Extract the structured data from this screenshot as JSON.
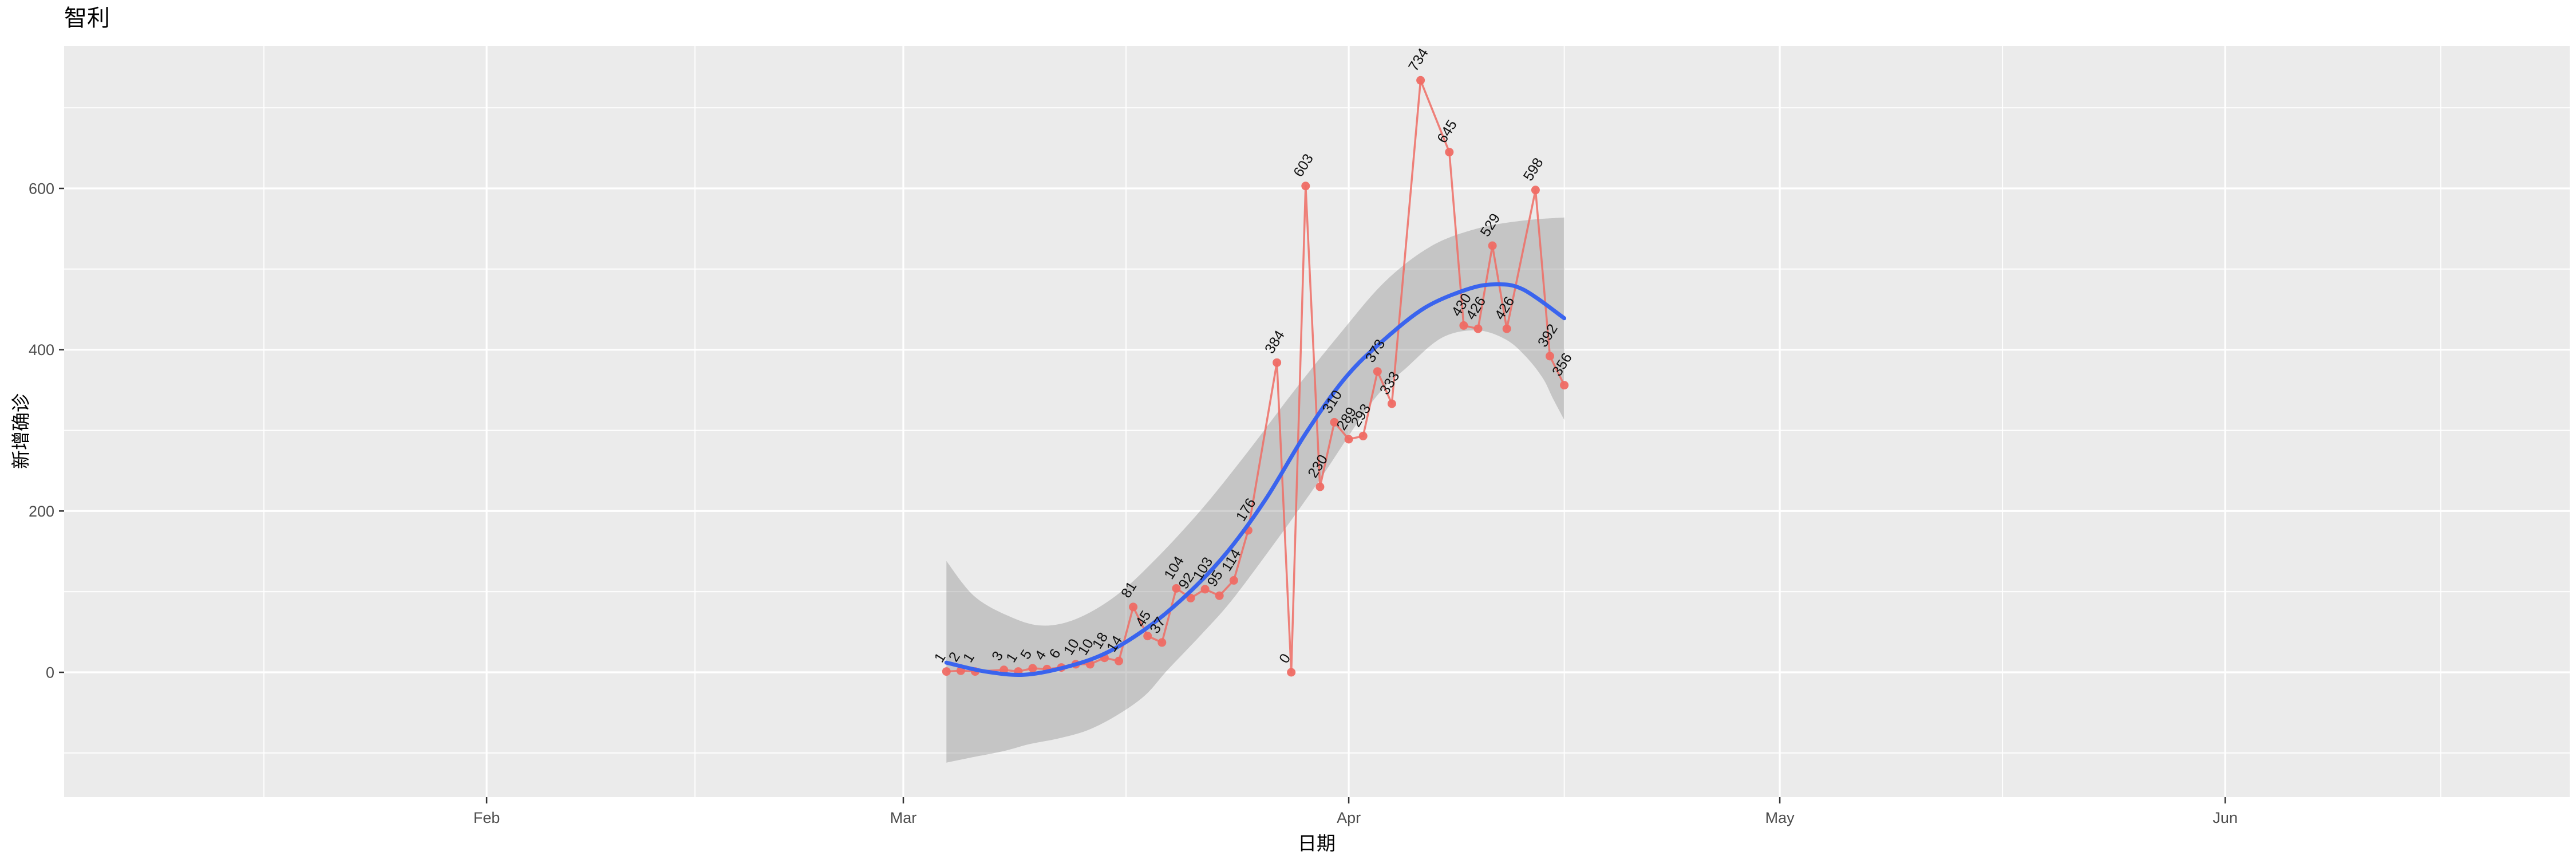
{
  "page": {
    "background": "#FFFFFF"
  },
  "title": "智利",
  "chart_data": {
    "type": "line",
    "title": "智利",
    "xlabel": "日期",
    "ylabel": "新增确诊",
    "legend": "none",
    "grid": true,
    "x_axis": {
      "day_offset_origin": "2020-03-01",
      "tick_labels": [
        "Feb",
        "Mar",
        "Apr",
        "May",
        "Jun"
      ],
      "major_day_offsets": [
        -29,
        0,
        31,
        61,
        92
      ],
      "minor_day_offsets": [
        -44.5,
        -14.5,
        15.5,
        46,
        76.5,
        107
      ]
    },
    "y_axis": {
      "tick_labels": [
        "0",
        "200",
        "400",
        "600"
      ],
      "major_values": [
        0,
        200,
        400,
        600
      ],
      "minor_values": [
        -100,
        100,
        300,
        500,
        700
      ],
      "range_shown": [
        -155,
        777
      ]
    },
    "series": [
      {
        "name": "新增确诊",
        "style": "line+points+labels",
        "points_format": [
          "date",
          "day_offset",
          "new_cases"
        ],
        "points": [
          [
            "2020-03-04",
            3,
            1
          ],
          [
            "2020-03-05",
            4,
            2
          ],
          [
            "2020-03-06",
            5,
            1
          ],
          [
            "2020-03-08",
            7,
            3
          ],
          [
            "2020-03-09",
            8,
            1
          ],
          [
            "2020-03-10",
            9,
            5
          ],
          [
            "2020-03-11",
            10,
            4
          ],
          [
            "2020-03-12",
            11,
            6
          ],
          [
            "2020-03-13",
            12,
            10
          ],
          [
            "2020-03-14",
            13,
            10
          ],
          [
            "2020-03-15",
            14,
            18
          ],
          [
            "2020-03-16",
            15,
            14
          ],
          [
            "2020-03-17",
            16,
            81
          ],
          [
            "2020-03-18",
            17,
            45
          ],
          [
            "2020-03-19",
            18,
            37
          ],
          [
            "2020-03-20",
            19,
            104
          ],
          [
            "2020-03-21",
            20,
            92
          ],
          [
            "2020-03-22",
            21,
            103
          ],
          [
            "2020-03-23",
            22,
            95
          ],
          [
            "2020-03-24",
            23,
            114
          ],
          [
            "2020-03-25",
            24,
            176
          ],
          [
            "2020-03-27",
            26,
            384
          ],
          [
            "2020-03-28",
            27,
            0
          ],
          [
            "2020-03-29",
            28,
            603
          ],
          [
            "2020-03-30",
            29,
            230
          ],
          [
            "2020-03-31",
            30,
            310
          ],
          [
            "2020-04-01",
            31,
            289
          ],
          [
            "2020-04-02",
            32,
            293
          ],
          [
            "2020-04-03",
            33,
            373
          ],
          [
            "2020-04-04",
            34,
            333
          ],
          [
            "2020-04-06",
            36,
            734
          ],
          [
            "2020-04-08",
            38,
            645
          ],
          [
            "2020-04-09",
            39,
            430
          ],
          [
            "2020-04-10",
            40,
            426
          ],
          [
            "2020-04-11",
            41,
            529
          ],
          [
            "2020-04-12",
            42,
            426
          ],
          [
            "2020-04-14",
            44,
            598
          ],
          [
            "2020-04-15",
            45,
            392
          ],
          [
            "2020-04-16",
            46,
            356
          ]
        ]
      }
    ],
    "smooth": {
      "name": "loess-fit-with-confidence-ribbon",
      "format": [
        "day_offset",
        "value"
      ],
      "line": [
        [
          3,
          12
        ],
        [
          5.7,
          1
        ],
        [
          8.4,
          -3
        ],
        [
          11.2,
          6
        ],
        [
          14,
          23
        ],
        [
          16.8,
          53
        ],
        [
          19.6,
          94
        ],
        [
          22.4,
          146
        ],
        [
          25.2,
          214
        ],
        [
          28,
          296
        ],
        [
          30.8,
          366
        ],
        [
          33.5,
          413
        ],
        [
          36.3,
          452
        ],
        [
          39.1,
          474
        ],
        [
          41.1,
          481
        ],
        [
          43.1,
          475
        ],
        [
          46,
          439
        ]
      ],
      "ribbon_upper": [
        [
          3,
          138
        ],
        [
          4.9,
          95
        ],
        [
          7.3,
          70
        ],
        [
          9.6,
          58
        ],
        [
          12,
          66
        ],
        [
          14.8,
          95
        ],
        [
          17.6,
          141
        ],
        [
          20.8,
          203
        ],
        [
          24,
          274
        ],
        [
          27.2,
          349
        ],
        [
          30.4,
          420
        ],
        [
          33.5,
          484
        ],
        [
          36.7,
          528
        ],
        [
          39.9,
          550
        ],
        [
          43.1,
          560
        ],
        [
          46,
          564
        ]
      ],
      "ribbon_lower": [
        [
          3,
          -112
        ],
        [
          4.9,
          -105
        ],
        [
          6.9,
          -98
        ],
        [
          8.8,
          -89
        ],
        [
          10.8,
          -82
        ],
        [
          12.8,
          -72
        ],
        [
          14.8,
          -54
        ],
        [
          16.8,
          -29
        ],
        [
          18.4,
          3
        ],
        [
          20.8,
          48
        ],
        [
          22.8,
          88
        ],
        [
          25.5,
          152
        ],
        [
          28.8,
          234
        ],
        [
          32.7,
          337
        ],
        [
          35.1,
          379
        ],
        [
          37.5,
          415
        ],
        [
          39.9,
          424
        ],
        [
          41.9,
          413
        ],
        [
          43.3,
          392
        ],
        [
          44.5,
          365
        ],
        [
          45.2,
          340
        ],
        [
          46,
          313
        ]
      ]
    },
    "colors": {
      "series": "#EF6C64",
      "smooth_line": "#3A64EE",
      "ribbon": "#7F7F7F",
      "ribbon_opacity": 0.35,
      "panel_bg": "#EBEBEB",
      "grid": "#FFFFFF",
      "tick_text": "#4D4D4D",
      "tick_mark": "#333333",
      "label_text": "#111111",
      "title_text": "#000000"
    }
  }
}
